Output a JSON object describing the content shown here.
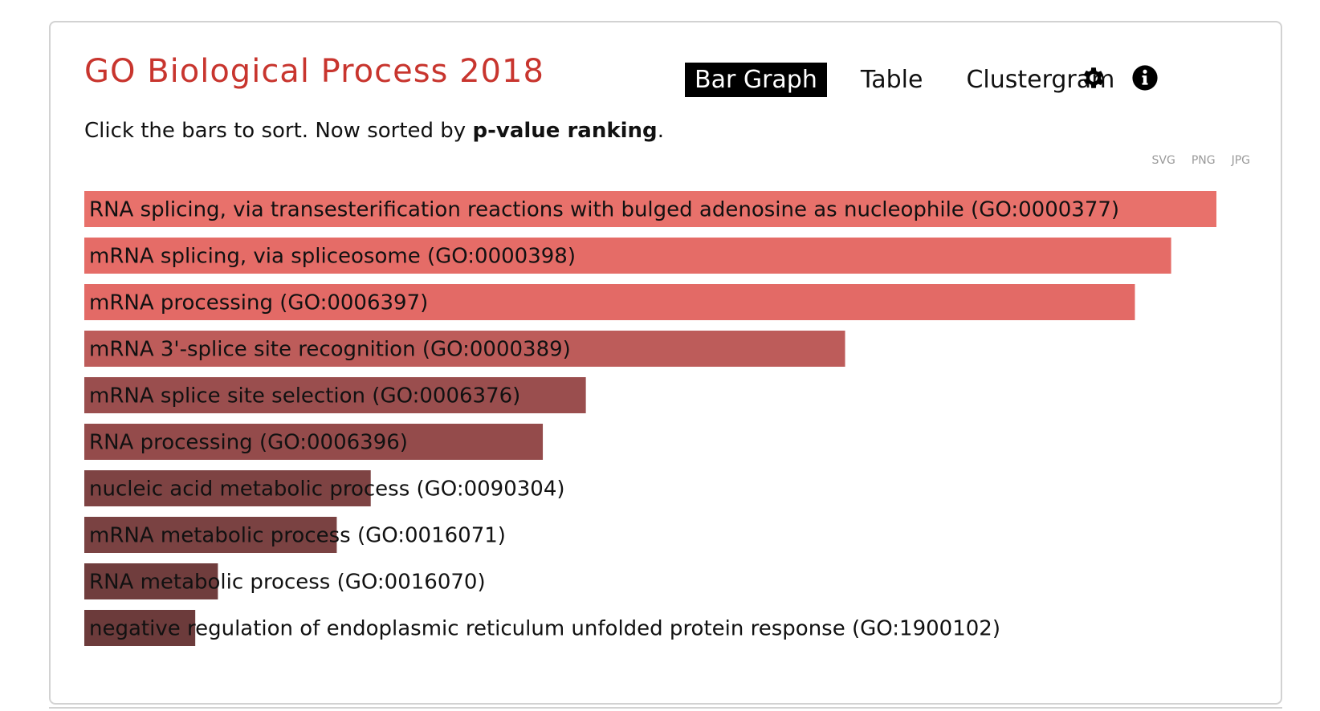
{
  "header": {
    "title": "GO Biological Process 2018"
  },
  "tabs": [
    {
      "label": "Bar Graph",
      "active": true
    },
    {
      "label": "Table",
      "active": false
    },
    {
      "label": "Clustergram",
      "active": false
    }
  ],
  "icons": {
    "settings": "gear-icon",
    "info": "info-icon"
  },
  "subtitle": {
    "prefix": "Click the bars to sort. Now sorted by ",
    "bold": "p-value ranking",
    "suffix": "."
  },
  "downloads": [
    "SVG",
    "PNG",
    "JPG"
  ],
  "colors": {
    "title": "#c8352e",
    "bar_strong": "#e8716b",
    "bar_weak": "#6e3a3a"
  },
  "chart_data": {
    "type": "bar",
    "orientation": "horizontal",
    "categories": [
      "RNA splicing, via transesterification reactions with bulged adenosine as nucleophile (GO:0000377)",
      "mRNA splicing, via spliceosome (GO:0000398)",
      "mRNA processing (GO:0006397)",
      "mRNA 3'-splice site recognition (GO:0000389)",
      "mRNA splice site selection (GO:0006376)",
      "RNA processing (GO:0006396)",
      "nucleic acid metabolic process (GO:0090304)",
      "mRNA metabolic process (GO:0016071)",
      "RNA metabolic process (GO:0016070)",
      "negative regulation of endoplasmic reticulum unfolded protein response (GO:1900102)"
    ],
    "values": [
      1.0,
      0.96,
      0.928,
      0.672,
      0.443,
      0.405,
      0.253,
      0.223,
      0.118,
      0.098
    ],
    "colors": [
      "#e8716b",
      "#e56c67",
      "#e36a66",
      "#bd5c5a",
      "#9a4e4e",
      "#944b4b",
      "#7e4343",
      "#7a4242",
      "#703d3d",
      "#6c3b3b"
    ],
    "sorted_by": "p-value ranking"
  }
}
